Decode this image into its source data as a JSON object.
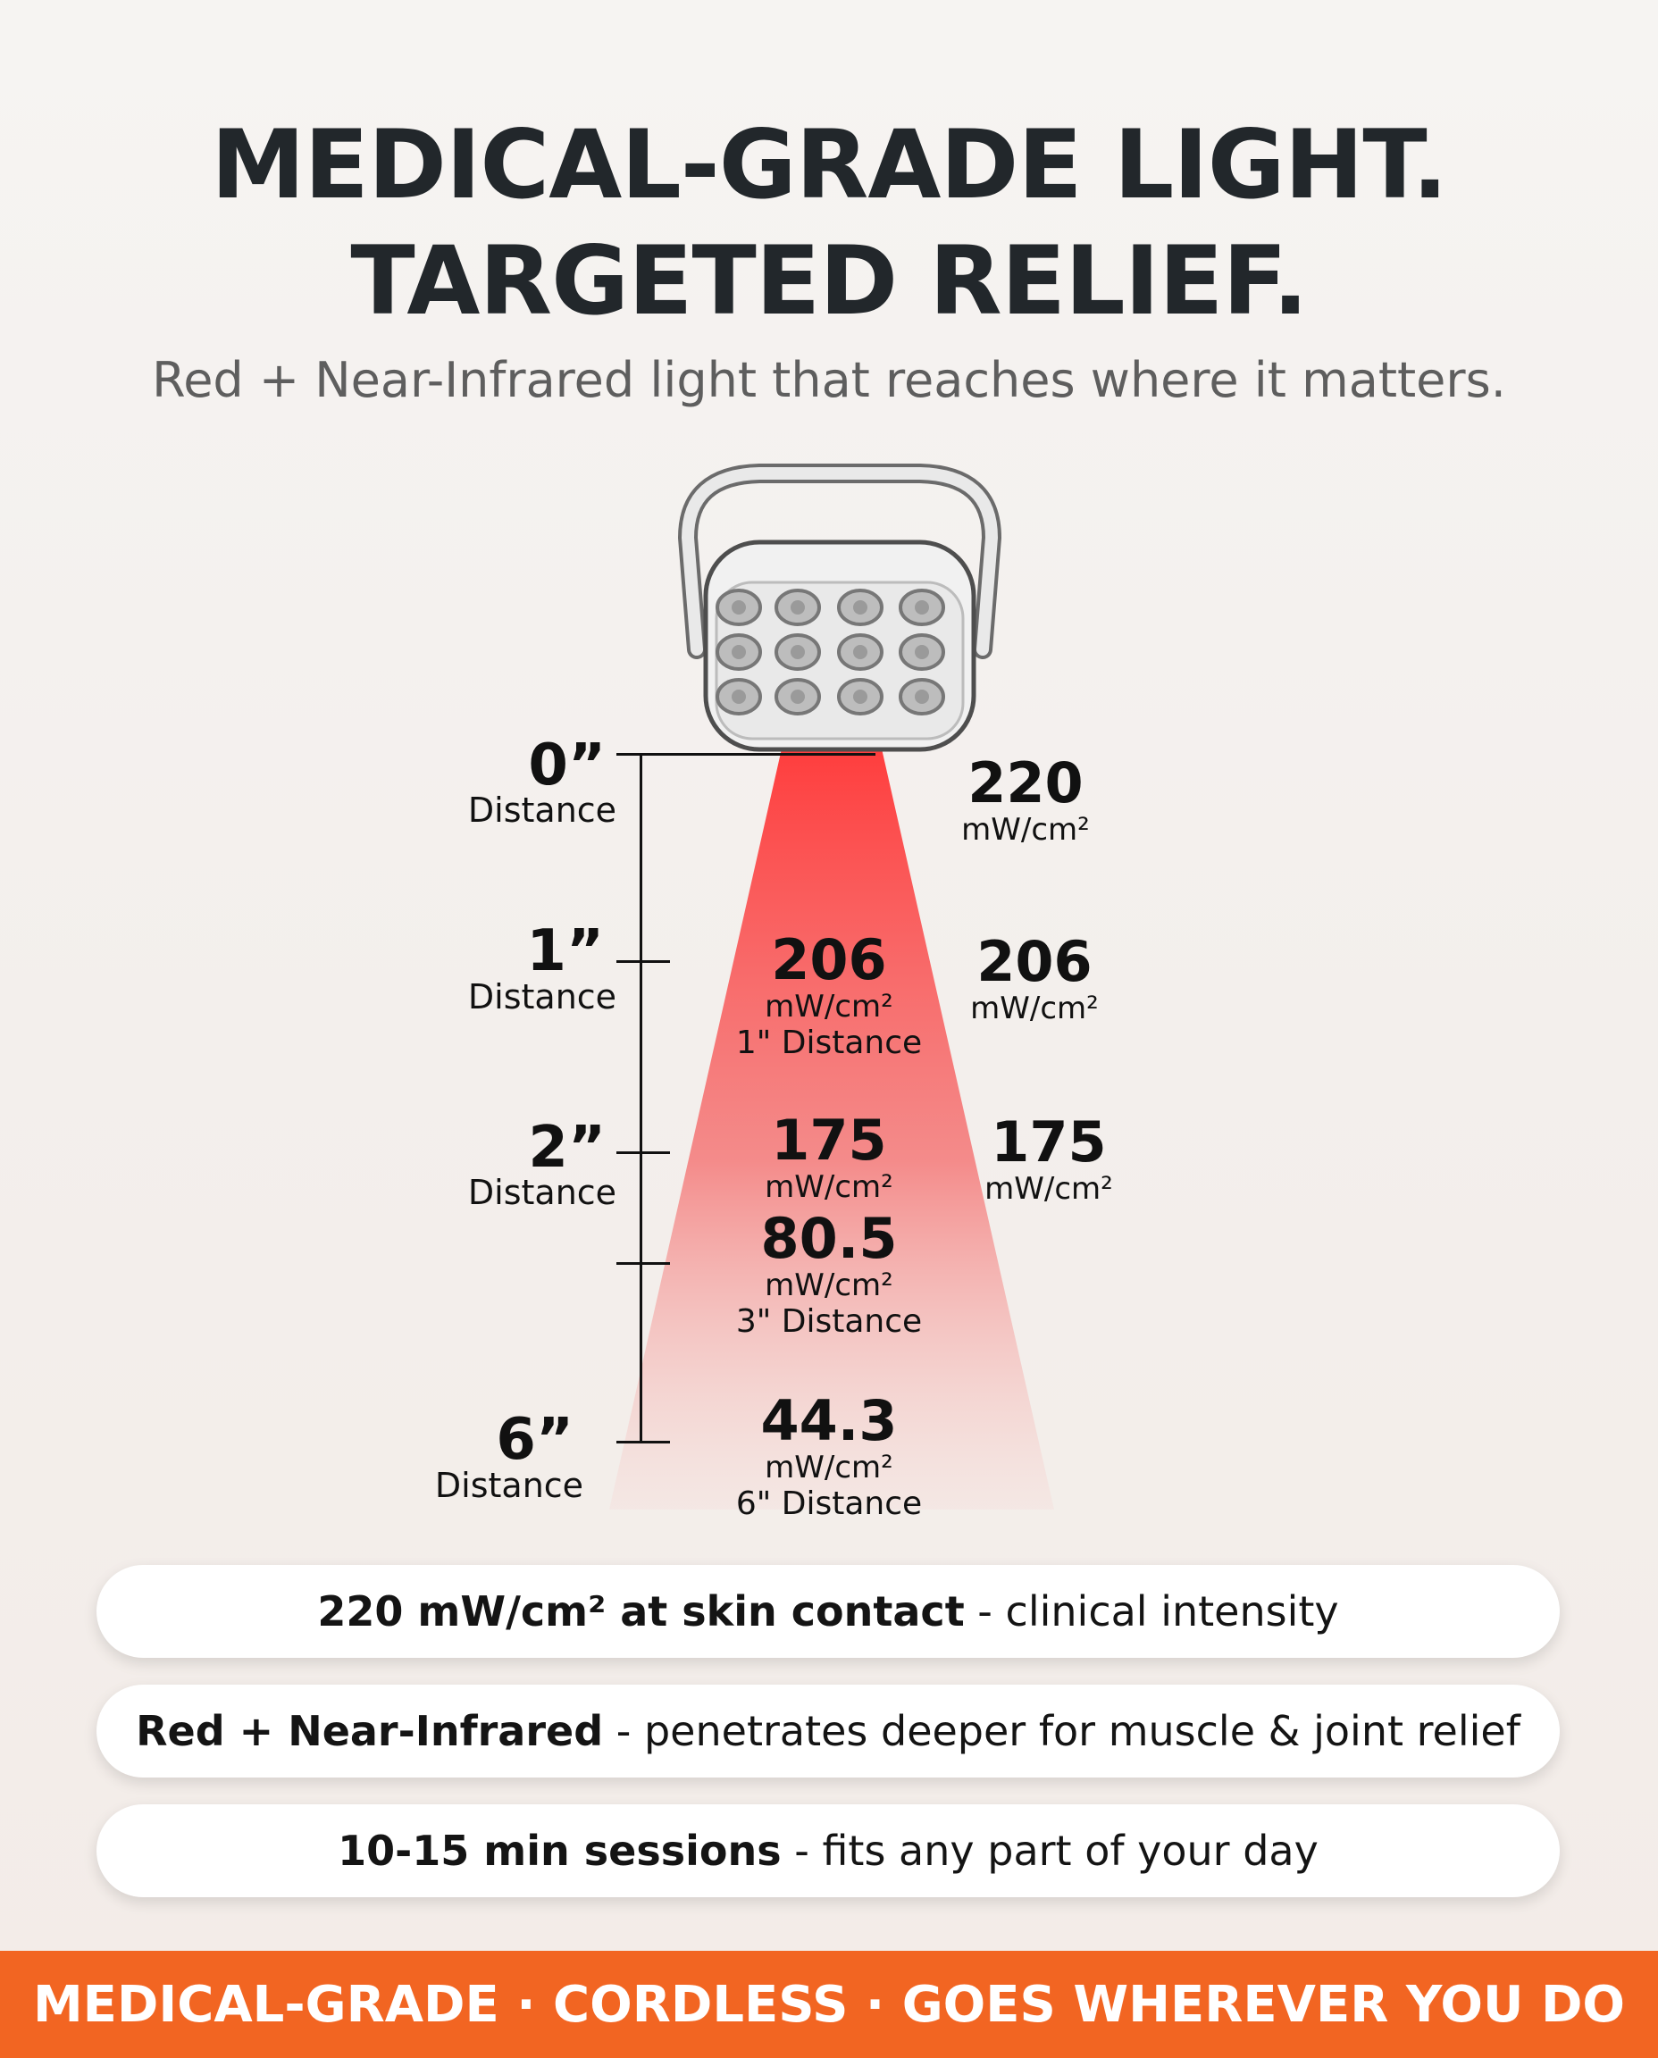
{
  "header": {
    "line1": "MEDICAL-GRADE LIGHT.",
    "line2": "TARGETED RELIEF.",
    "subtitle": "Red + Near-Infrared light that reaches where it matters."
  },
  "ruler": [
    {
      "num": "0”",
      "label": "Distance"
    },
    {
      "num": "1”",
      "label": "Distance"
    },
    {
      "num": "2”",
      "label": "Distance"
    },
    {
      "num": "6”",
      "label": "Distance"
    }
  ],
  "right_values": [
    {
      "num": "220",
      "unit": "mW/cm²"
    },
    {
      "num": "206",
      "unit": "mW/cm²"
    },
    {
      "num": "175",
      "unit": "mW/cm²"
    }
  ],
  "beam_values": [
    {
      "num": "206",
      "unit": "mW/cm²",
      "cap": "1\" Distance"
    },
    {
      "num": "175",
      "unit": "mW/cm²",
      "cap": ""
    },
    {
      "num": "80.5",
      "unit": "mW/cm²",
      "cap": "3\" Distance"
    },
    {
      "num": "44.3",
      "unit": "mW/cm²",
      "cap": "6\" Distance"
    }
  ],
  "features": [
    {
      "bold": "220 mW/cm² at skin contact",
      "rest": " - clinical intensity"
    },
    {
      "bold": "Red + Near-Infrared",
      "rest": " - penetrates deeper for muscle & joint relief"
    },
    {
      "bold": "10-15 min sessions",
      "rest": " - fits any part of your day"
    }
  ],
  "footer": "MEDICAL-GRADE · CORDLESS · GOES WHEREVER YOU DO",
  "colors": {
    "accent": "#f26522",
    "beam": "#ff3b3b",
    "headline": "#22272b"
  }
}
